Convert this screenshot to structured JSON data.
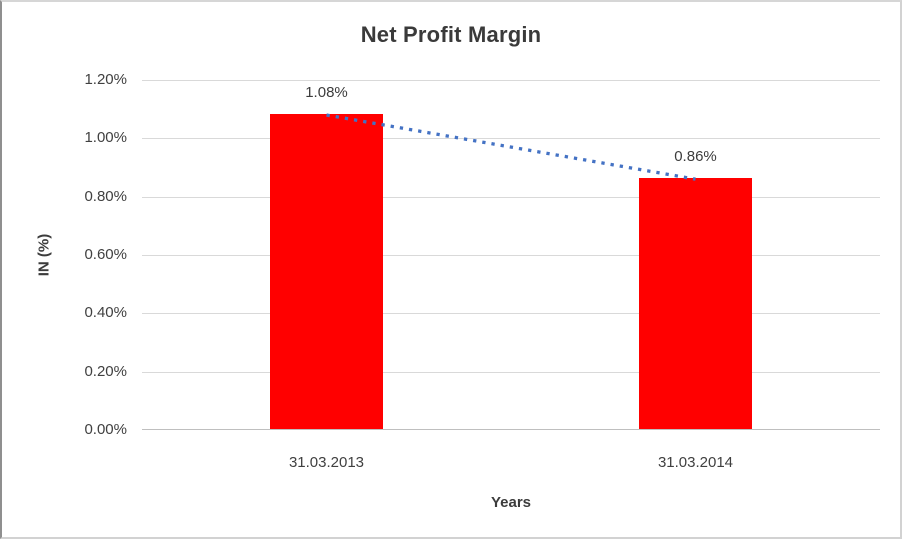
{
  "chart_data": {
    "type": "bar",
    "title": "Net Profit Margin",
    "categories": [
      "31.03.2013",
      "31.03.2014"
    ],
    "values": [
      1.08,
      0.86
    ],
    "data_labels": [
      "1.08%",
      "0.86%"
    ],
    "xlabel": "Years",
    "ylabel": "IN (%)",
    "ylim": [
      0,
      1.2
    ],
    "ytick_labels": [
      "0.00%",
      "0.20%",
      "0.40%",
      "0.60%",
      "0.80%",
      "1.00%",
      "1.20%"
    ],
    "grid": true,
    "legend": "none",
    "bar_color": "#FF0000",
    "gridline_color": "#D9D9D9",
    "axis_line_color": "#BFBFBF",
    "text_color": "#404040",
    "trendline": {
      "type": "linear",
      "style": "dotted",
      "color": "#4472C4",
      "from_value": 1.08,
      "to_value": 0.86
    }
  }
}
